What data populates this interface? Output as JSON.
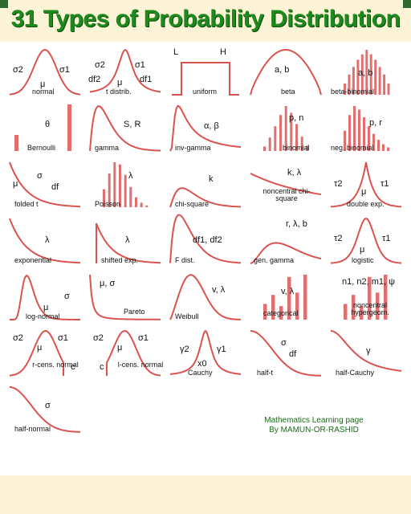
{
  "title": "31 Types of Probability Distribution",
  "credit": {
    "line1": "Mathematics Learning page",
    "line2": "By MAMUN-OR-RASHID"
  },
  "colors": {
    "curve": "#d9534f",
    "bar": "#e07070",
    "title": "#1e8a1e",
    "credit": "#1c6b1c",
    "background": "#fdf3d6",
    "panel": "#ffffff"
  },
  "cells": [
    {
      "name": "normal",
      "params": [
        "σ2",
        "μ",
        "σ1"
      ]
    },
    {
      "name": "t distrib.",
      "params": [
        "σ2",
        "σ1",
        "df2",
        "μ",
        "df1"
      ]
    },
    {
      "name": "uniform",
      "params": [
        "L",
        "H"
      ]
    },
    {
      "name": "beta",
      "params": [
        "a, b"
      ]
    },
    {
      "name": "beta-binomial",
      "params": [
        "a, b"
      ]
    },
    {
      "name": "Bernoulli",
      "params": [
        "θ"
      ]
    },
    {
      "name": "gamma",
      "params": [
        "S, R"
      ]
    },
    {
      "name": "inv-gamma",
      "params": [
        "α, β"
      ]
    },
    {
      "name": "binomial",
      "params": [
        "p, n"
      ]
    },
    {
      "name": "neg. binomial",
      "params": [
        "p, r"
      ]
    },
    {
      "name": "folded t",
      "params": [
        "σ",
        "μ",
        "df"
      ]
    },
    {
      "name": "Poisson",
      "params": [
        "λ"
      ]
    },
    {
      "name": "chi-square",
      "params": [
        "k"
      ]
    },
    {
      "name": "noncentral chi-square",
      "params": [
        "k, λ"
      ]
    },
    {
      "name": "double exp.",
      "params": [
        "τ2",
        "μ",
        "τ1"
      ]
    },
    {
      "name": "exponential",
      "params": [
        "λ"
      ]
    },
    {
      "name": "shifted exp.",
      "params": [
        "λ"
      ]
    },
    {
      "name": "F dist.",
      "params": [
        "df1, df2"
      ]
    },
    {
      "name": "gen. gamma",
      "params": [
        "r, λ, b"
      ]
    },
    {
      "name": "logistic",
      "params": [
        "τ2",
        "μ",
        "τ1"
      ]
    },
    {
      "name": "log-normal",
      "params": [
        "μ",
        "σ"
      ]
    },
    {
      "name": "Pareto",
      "params": [
        "μ, σ"
      ]
    },
    {
      "name": "Weibull",
      "params": [
        "v, λ"
      ]
    },
    {
      "name": "categorical",
      "params": [
        "v, λ"
      ]
    },
    {
      "name": "noncentral hypergeom.",
      "params": [
        "n1, n2, m1, ψ"
      ]
    },
    {
      "name": "r-cens. normal",
      "params": [
        "σ2",
        "μ",
        "σ1",
        "c"
      ]
    },
    {
      "name": "l-cens. normal",
      "params": [
        "σ2",
        "μ",
        "σ1",
        "c"
      ]
    },
    {
      "name": "Cauchy",
      "params": [
        "γ2",
        "γ1",
        "x0"
      ]
    },
    {
      "name": "half-t",
      "params": [
        "σ",
        "df"
      ]
    },
    {
      "name": "half-Cauchy",
      "params": [
        "γ"
      ]
    },
    {
      "name": "half-normal",
      "params": [
        "σ"
      ]
    }
  ]
}
